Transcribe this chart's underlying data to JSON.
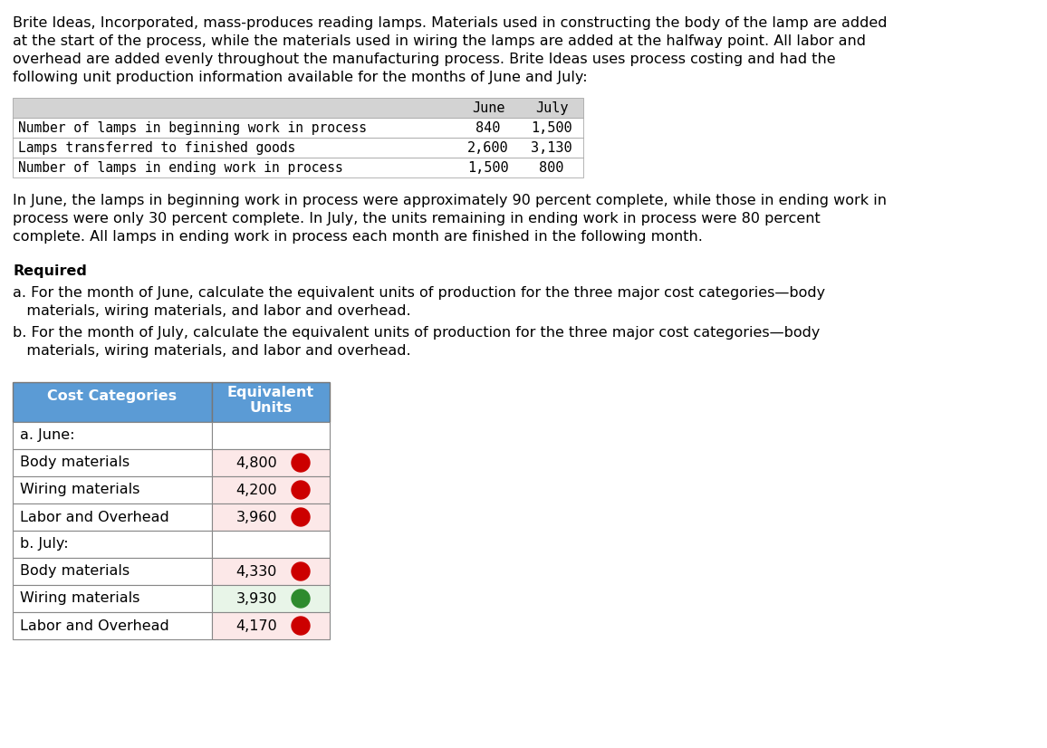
{
  "paragraph1_lines": [
    "Brite Ideas, Incorporated, mass-produces reading lamps. Materials used in constructing the body of the lamp are added",
    "at the start of the process, while the materials used in wiring the lamps are added at the halfway point. All labor and",
    "overhead are added evenly throughout the manufacturing process. Brite Ideas uses process costing and had the",
    "following unit production information available for the months of June and July:"
  ],
  "intro_table_header": [
    "June",
    "July"
  ],
  "intro_table_rows": [
    [
      "Number of lamps in beginning work in process",
      "840",
      "1,500"
    ],
    [
      "Lamps transferred to finished goods",
      "2,600",
      "3,130"
    ],
    [
      "Number of lamps in ending work in process",
      "1,500",
      "800"
    ]
  ],
  "intro_header_bg": "#d3d3d3",
  "paragraph2_lines": [
    "In June, the lamps in beginning work in process were approximately 90 percent complete, while those in ending work in",
    "process were only 30 percent complete. In July, the units remaining in ending work in process were 80 percent",
    "complete. All lamps in ending work in process each month are finished in the following month."
  ],
  "required_label": "Required",
  "req_a_lines": [
    "a. For the month of June, calculate the equivalent units of production for the three major cost categories—body",
    "   materials, wiring materials, and labor and overhead."
  ],
  "req_b_lines": [
    "b. For the month of July, calculate the equivalent units of production for the three major cost categories—body",
    "   materials, wiring materials, and labor and overhead."
  ],
  "answer_col1_header": "Cost Categories",
  "answer_col2_header": "Equivalent\nUnits",
  "answer_header_bg": "#5b9bd5",
  "answer_header_fg": "#ffffff",
  "answer_rows": [
    {
      "label": "a. June:",
      "value": "",
      "section": true,
      "correct": null
    },
    {
      "label": "Body materials",
      "value": "4,800",
      "section": false,
      "correct": false
    },
    {
      "label": "Wiring materials",
      "value": "4,200",
      "section": false,
      "correct": false
    },
    {
      "label": "Labor and Overhead",
      "value": "3,960",
      "section": false,
      "correct": false
    },
    {
      "label": "b. July:",
      "value": "",
      "section": true,
      "correct": null
    },
    {
      "label": "Body materials",
      "value": "4,330",
      "section": false,
      "correct": false
    },
    {
      "label": "Wiring materials",
      "value": "3,930",
      "section": false,
      "correct": true
    },
    {
      "label": "Labor and Overhead",
      "value": "4,170",
      "section": false,
      "correct": false
    }
  ],
  "wrong_bg": "#fce8e8",
  "correct_bg": "#e8f5e8",
  "wrong_circle": "#cc0000",
  "correct_circle": "#2e8b2e",
  "bg_color": "#ffffff"
}
